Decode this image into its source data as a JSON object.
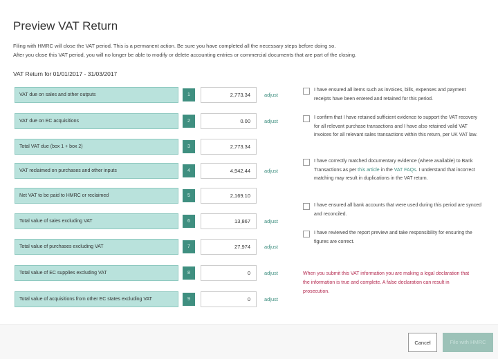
{
  "title": "Preview VAT Return",
  "intro": [
    "Filing with HMRC will close the VAT period. This is a permanent action. Be sure you have completed all the necessary steps before doing so.",
    "After you close this VAT period, you will no longer be able to modify or delete accounting entries or commercial documents that are part of the closing."
  ],
  "period": "VAT Return for 01/01/2017 - 31/03/2017",
  "adjust_label": "adjust",
  "rows": [
    {
      "label": "VAT due on sales and other outputs",
      "box": "1",
      "value": "2,773.34",
      "adjust": true
    },
    {
      "label": "VAT due on EC acquisitions",
      "box": "2",
      "value": "0.00",
      "adjust": true
    },
    {
      "label": "Total VAT due (box 1 + box 2)",
      "box": "3",
      "value": "2,773.34",
      "adjust": false
    },
    {
      "label": "VAT reclaimed on purchases and other inputs",
      "box": "4",
      "value": "4,942.44",
      "adjust": true
    },
    {
      "label": "Net VAT to be paid to HMRC or reclaimed",
      "box": "5",
      "value": "2,169.10",
      "adjust": false
    },
    {
      "label": "Total value of sales excluding VAT",
      "box": "6",
      "value": "13,867",
      "adjust": true
    },
    {
      "label": "Total value of purchases excluding VAT",
      "box": "7",
      "value": "27,974",
      "adjust": true
    },
    {
      "label": "Total value of EC supplies excluding VAT",
      "box": "8",
      "value": "0",
      "adjust": true
    },
    {
      "label": "Total value of acquisitions from other EC states excluding VAT",
      "box": "9",
      "value": "0",
      "adjust": true
    }
  ],
  "checks": [
    {
      "text": "I have ensured all items such as invoices, bills, expenses and payment receipts have been entered and retained for this period."
    },
    {
      "text": "I confirm that I have retained sufficient evidence to support the VAT recovery for all relevant purchase transactions and I have also retained valid VAT invoices for all relevant sales transactions within this return, per UK VAT law."
    },
    {
      "pre": "I have correctly matched documentary evidence (where available) to Bank Transactions as per ",
      "link1": "this article",
      "mid": " in the ",
      "link2": "VAT FAQs",
      "post": ". I understand that incorrect matching may result in duplications in the VAT return."
    },
    {
      "text": "I have ensured all bank accounts that were used during this period are synced and reconciled."
    },
    {
      "text": "I have reviewed the report preview and take responsibility for ensuring the figures are correct."
    }
  ],
  "warning": "When you submit this VAT information you are making a legal declaration that the information is true and complete. A false declaration can result in prosecution.",
  "footer": {
    "cancel": "Cancel",
    "file": "File with HMRC"
  },
  "colors": {
    "accent": "#3f8f80",
    "label_bg": "#b9e2dc",
    "warning": "#b3284e"
  }
}
